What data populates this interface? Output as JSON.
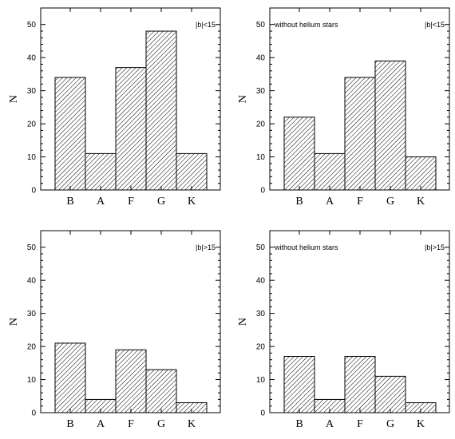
{
  "chart_data": [
    {
      "type": "bar",
      "categories": [
        "B",
        "A",
        "F",
        "G",
        "K"
      ],
      "values": [
        34,
        11,
        37,
        48,
        11
      ],
      "ylabel": "N",
      "ylim": [
        0,
        55
      ],
      "yticks": [
        0,
        10,
        20,
        30,
        40,
        50
      ],
      "annotation_left": "",
      "annotation_right": "|b|<15"
    },
    {
      "type": "bar",
      "categories": [
        "B",
        "A",
        "F",
        "G",
        "K"
      ],
      "values": [
        22,
        11,
        34,
        39,
        10
      ],
      "ylabel": "N",
      "ylim": [
        0,
        55
      ],
      "yticks": [
        0,
        10,
        20,
        30,
        40,
        50
      ],
      "annotation_left": "without helium stars",
      "annotation_right": "|b|<15"
    },
    {
      "type": "bar",
      "categories": [
        "B",
        "A",
        "F",
        "G",
        "K"
      ],
      "values": [
        21,
        4,
        19,
        13,
        3
      ],
      "ylabel": "N",
      "ylim": [
        0,
        55
      ],
      "yticks": [
        0,
        10,
        20,
        30,
        40,
        50
      ],
      "annotation_left": "",
      "annotation_right": "|b|>15"
    },
    {
      "type": "bar",
      "categories": [
        "B",
        "A",
        "F",
        "G",
        "K"
      ],
      "values": [
        17,
        4,
        17,
        11,
        3
      ],
      "ylabel": "N",
      "ylim": [
        0,
        55
      ],
      "yticks": [
        0,
        10,
        20,
        30,
        40,
        50
      ],
      "annotation_left": "without helium stars",
      "annotation_right": "|b|>15"
    }
  ]
}
